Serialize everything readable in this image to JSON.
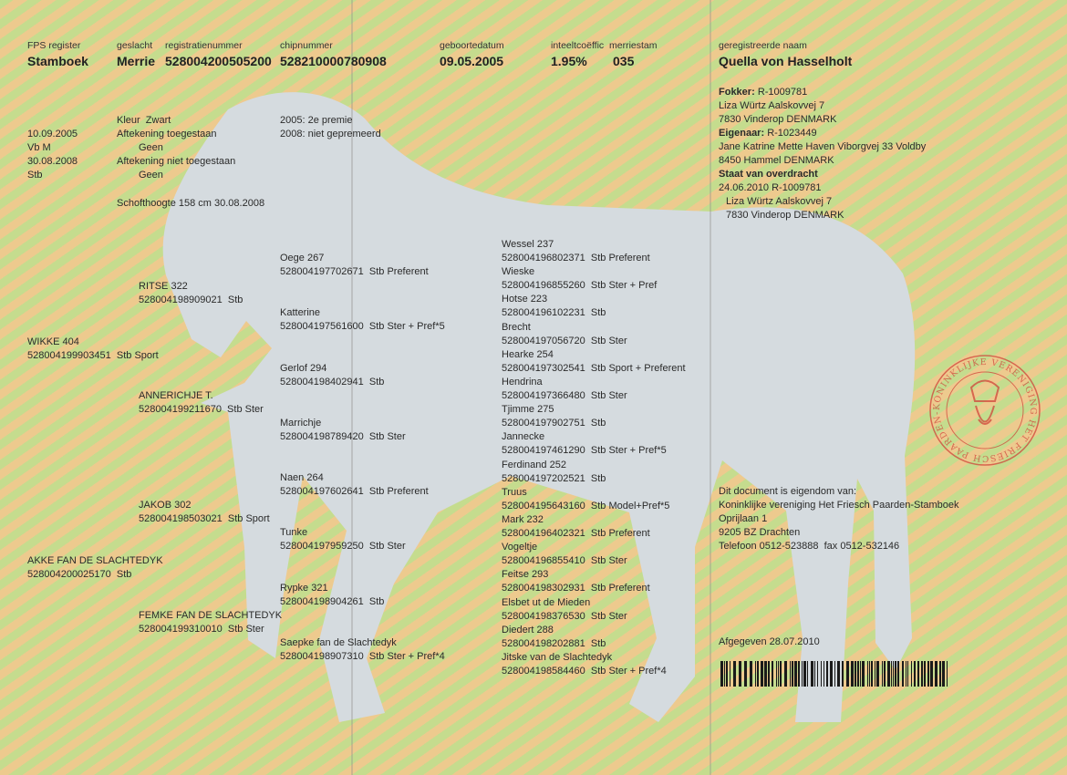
{
  "header": {
    "fps_register": {
      "label": "FPS register",
      "value": "Stamboek"
    },
    "geslacht": {
      "label": "geslacht",
      "value": "Merrie"
    },
    "registratienummer": {
      "label": "registratienummer",
      "value": "528004200505200"
    },
    "chipnummer": {
      "label": "chipnummer",
      "value": "528210000780908"
    },
    "geboortedatum": {
      "label": "geboortedatum",
      "value": "09.05.2005"
    },
    "inteeltcoeffic": {
      "label": "inteeltcoëffic",
      "value": "1.95%"
    },
    "merriestam": {
      "label": "merriestam",
      "value": "035"
    },
    "geregistreerde_naam": {
      "label": "geregistreerde naam",
      "value": "Quella von Hasselholt"
    }
  },
  "details": {
    "dates": [
      "10.09.2005",
      "Vb M",
      "30.08.2008",
      "Stb"
    ],
    "kleur": "Kleur  Zwart",
    "lines": [
      "Aftekening toegestaan",
      "Geen",
      "Aftekening niet toegestaan",
      "Geen"
    ],
    "schofthoogte": "Schofthoogte 158 cm 30.08.2008",
    "premies": [
      "2005: 2e premie",
      "2008: niet gepremeerd"
    ]
  },
  "owner": {
    "fokker_label": "Fokker:",
    "fokker_id": "R-1009781",
    "fokker_lines": [
      "Liza Würtz Aalskovvej 7",
      "7830 Vinderop DENMARK"
    ],
    "eigenaar_label": "Eigenaar:",
    "eigenaar_id": "R-1023449",
    "eigenaar_lines": [
      "Jane Katrine Mette Haven Viborgvej 33 Voldby",
      "8450 Hammel DENMARK"
    ],
    "overdracht_label": "Staat van overdracht",
    "overdracht_lines": [
      "24.06.2010 R-1009781",
      "Liza Würtz Aalskovvej 7",
      "7830 Vinderop DENMARK"
    ]
  },
  "pedigree": {
    "gen1": [
      {
        "name": "WIKKE 404",
        "reg": "528004199903451  Stb Sport"
      },
      {
        "name": "AKKE FAN DE SLACHTEDYK",
        "reg": "528004200025170  Stb"
      }
    ],
    "gen2": [
      {
        "name": "RITSE 322",
        "reg": "528004198909021  Stb"
      },
      {
        "name": "ANNERICHJE T.",
        "reg": "528004199211670  Stb Ster"
      },
      {
        "name": "JAKOB 302",
        "reg": "528004198503021  Stb Sport"
      },
      {
        "name": "FEMKE FAN DE SLACHTEDYK",
        "reg": "528004199310010  Stb Ster"
      }
    ],
    "gen3": [
      {
        "name": "Oege 267",
        "reg": "528004197702671  Stb Preferent"
      },
      {
        "name": "Katterine",
        "reg": "528004197561600  Stb Ster + Pref*5"
      },
      {
        "name": "Gerlof 294",
        "reg": "528004198402941  Stb"
      },
      {
        "name": "Marrichje",
        "reg": "528004198789420  Stb Ster"
      },
      {
        "name": "Naen 264",
        "reg": "528004197602641  Stb Preferent"
      },
      {
        "name": "Tunke",
        "reg": "528004197959250  Stb Ster"
      },
      {
        "name": "Rypke 321",
        "reg": "528004198904261  Stb"
      },
      {
        "name": "Saepke fan de Slachtedyk",
        "reg": "528004198907310  Stb Ster + Pref*4"
      }
    ],
    "gen4": [
      {
        "name": "Wessel 237",
        "reg": "528004196802371  Stb Preferent"
      },
      {
        "name": "Wieske",
        "reg": "528004196855260  Stb Ster + Pref"
      },
      {
        "name": "Hotse 223",
        "reg": "528004196102231  Stb"
      },
      {
        "name": "Brecht",
        "reg": "528004197056720  Stb Ster"
      },
      {
        "name": "Hearke 254",
        "reg": "528004197302541  Stb Sport + Preferent"
      },
      {
        "name": "Hendrina",
        "reg": "528004197366480  Stb Ster"
      },
      {
        "name": "Tjimme 275",
        "reg": "528004197902751  Stb"
      },
      {
        "name": "Jannecke",
        "reg": "528004197461290  Stb Ster + Pref*5"
      },
      {
        "name": "Ferdinand 252",
        "reg": "528004197202521  Stb"
      },
      {
        "name": "Truus",
        "reg": "528004195643160  Stb Model+Pref*5"
      },
      {
        "name": "Mark 232",
        "reg": "528004196402321  Stb Preferent"
      },
      {
        "name": "Vogeltje",
        "reg": "528004196855410  Stb Ster"
      },
      {
        "name": "Feitse 293",
        "reg": "528004198302931  Stb Preferent"
      },
      {
        "name": "Elsbet ut de Mieden",
        "reg": "528004198376530  Stb Ster"
      },
      {
        "name": "Diedert 288",
        "reg": "528004198202881  Stb"
      },
      {
        "name": "Jitske van de Slachtedyk",
        "reg": "528004198584460  Stb Ster + Pref*4"
      }
    ]
  },
  "footer": {
    "eigendom": [
      "Dit document is eigendom van:",
      "Koninklijke vereniging Het Friesch Paarden-Stamboek",
      "Oprijlaan 1",
      "9205 BZ Drachten",
      "Telefoon 0512-523888  fax 0512-532146"
    ],
    "afgegeven": "Afgegeven 28.07.2010"
  },
  "stamp": {
    "text": "KONINKLIJKE VERENIGING HET FRIESCH PAARDEN-STAMBOEK",
    "color": "#d0453a"
  },
  "colors": {
    "stripe_orange": "#e9c07a",
    "stripe_green": "#b9d67a",
    "silhouette": "#ccd5dd"
  }
}
